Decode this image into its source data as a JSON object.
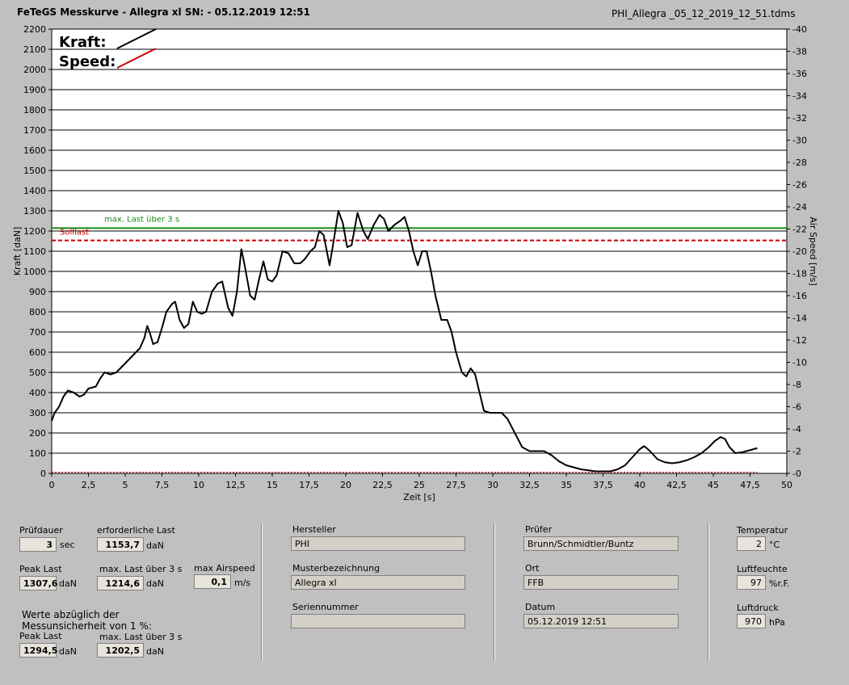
{
  "header": {
    "title": "FeTeGS Messkurve - Allegra xl  SN:  - 05.12.2019 12:51",
    "file": "PHI_Allegra _05_12_2019_12_51.tdms"
  },
  "colors": {
    "kraft": "#000000",
    "speed": "#cc0000",
    "max_line": "#1a8a1a",
    "soll_line": "#cc0000",
    "plot_bg": "#ffffff"
  },
  "chart_data": {
    "type": "line",
    "xlabel": "Zeit [s]",
    "ylabel": "Kraft [daN]",
    "y2label": "Air Speed [m/s]",
    "xlim": [
      0,
      50
    ],
    "ylim": [
      0,
      2200
    ],
    "y2lim": [
      0,
      40
    ],
    "grid": true,
    "x_ticks": [
      "0",
      "2,5",
      "5",
      "7,5",
      "10",
      "12,5",
      "15",
      "17,5",
      "20",
      "22,5",
      "25",
      "27,5",
      "30",
      "32,5",
      "35",
      "37,5",
      "40",
      "42,5",
      "45",
      "47,5",
      "50"
    ],
    "y_ticks": [
      "0",
      "100",
      "200",
      "300",
      "400",
      "500",
      "600",
      "700",
      "800",
      "900",
      "1000",
      "1100",
      "1200",
      "1300",
      "1400",
      "1500",
      "1600",
      "1700",
      "1800",
      "1900",
      "2000",
      "2100",
      "2200"
    ],
    "y2_ticks": [
      "0",
      "2",
      "4",
      "6",
      "8",
      "10",
      "12",
      "14",
      "16",
      "18",
      "20",
      "22",
      "24",
      "26",
      "28",
      "30",
      "32",
      "34",
      "36",
      "38",
      "40"
    ],
    "legend": [
      {
        "label": "Kraft:",
        "color": "#000000"
      },
      {
        "label": "Speed:",
        "color": "#cc0000"
      }
    ],
    "reference_lines": [
      {
        "label": "max. Last über  3 s",
        "value": 1214.6,
        "color": "#1a8a1a",
        "style": "solid"
      },
      {
        "label": "Solllast",
        "value": 1153.7,
        "color": "#cc0000",
        "style": "dashed"
      }
    ],
    "series": [
      {
        "name": "Kraft",
        "color": "#000000",
        "points": [
          [
            0,
            260
          ],
          [
            0.2,
            300
          ],
          [
            0.5,
            330
          ],
          [
            0.8,
            380
          ],
          [
            1.1,
            410
          ],
          [
            1.5,
            400
          ],
          [
            1.9,
            380
          ],
          [
            2.2,
            390
          ],
          [
            2.5,
            420
          ],
          [
            3,
            430
          ],
          [
            3.3,
            470
          ],
          [
            3.6,
            500
          ],
          [
            4,
            490
          ],
          [
            4.4,
            500
          ],
          [
            4.8,
            530
          ],
          [
            5.2,
            560
          ],
          [
            5.6,
            590
          ],
          [
            6,
            620
          ],
          [
            6.3,
            670
          ],
          [
            6.5,
            730
          ],
          [
            6.7,
            690
          ],
          [
            6.9,
            640
          ],
          [
            7.2,
            650
          ],
          [
            7.5,
            720
          ],
          [
            7.8,
            800
          ],
          [
            8.2,
            840
          ],
          [
            8.4,
            850
          ],
          [
            8.7,
            760
          ],
          [
            9,
            720
          ],
          [
            9.3,
            740
          ],
          [
            9.6,
            850
          ],
          [
            9.9,
            800
          ],
          [
            10.2,
            790
          ],
          [
            10.5,
            800
          ],
          [
            10.9,
            900
          ],
          [
            11.3,
            940
          ],
          [
            11.6,
            950
          ],
          [
            12,
            820
          ],
          [
            12.3,
            780
          ],
          [
            12.6,
            900
          ],
          [
            12.9,
            1110
          ],
          [
            13.1,
            1040
          ],
          [
            13.5,
            880
          ],
          [
            13.8,
            860
          ],
          [
            14.1,
            960
          ],
          [
            14.4,
            1050
          ],
          [
            14.7,
            960
          ],
          [
            15,
            950
          ],
          [
            15.3,
            980
          ],
          [
            15.7,
            1100
          ],
          [
            16.1,
            1090
          ],
          [
            16.5,
            1040
          ],
          [
            16.9,
            1040
          ],
          [
            17.2,
            1060
          ],
          [
            17.6,
            1100
          ],
          [
            17.9,
            1120
          ],
          [
            18.2,
            1200
          ],
          [
            18.5,
            1180
          ],
          [
            18.9,
            1030
          ],
          [
            19.2,
            1160
          ],
          [
            19.5,
            1300
          ],
          [
            19.8,
            1240
          ],
          [
            20.1,
            1120
          ],
          [
            20.4,
            1130
          ],
          [
            20.8,
            1290
          ],
          [
            21.2,
            1200
          ],
          [
            21.5,
            1160
          ],
          [
            21.9,
            1230
          ],
          [
            22.3,
            1280
          ],
          [
            22.6,
            1260
          ],
          [
            22.9,
            1200
          ],
          [
            23.3,
            1230
          ],
          [
            23.7,
            1250
          ],
          [
            24,
            1270
          ],
          [
            24.3,
            1200
          ],
          [
            24.6,
            1100
          ],
          [
            24.9,
            1030
          ],
          [
            25.2,
            1100
          ],
          [
            25.5,
            1100
          ],
          [
            25.8,
            1000
          ],
          [
            26.1,
            880
          ],
          [
            26.5,
            760
          ],
          [
            26.9,
            760
          ],
          [
            27.2,
            700
          ],
          [
            27.5,
            600
          ],
          [
            27.9,
            500
          ],
          [
            28.2,
            480
          ],
          [
            28.5,
            520
          ],
          [
            28.8,
            490
          ],
          [
            29.1,
            400
          ],
          [
            29.4,
            310
          ],
          [
            29.8,
            300
          ],
          [
            30.2,
            300
          ],
          [
            30.6,
            300
          ],
          [
            31,
            270
          ],
          [
            31.5,
            200
          ],
          [
            32,
            130
          ],
          [
            32.5,
            110
          ],
          [
            33,
            110
          ],
          [
            33.5,
            110
          ],
          [
            34,
            90
          ],
          [
            34.5,
            60
          ],
          [
            35,
            40
          ],
          [
            35.5,
            30
          ],
          [
            36,
            20
          ],
          [
            36.5,
            15
          ],
          [
            37,
            10
          ],
          [
            37.5,
            10
          ],
          [
            38,
            10
          ],
          [
            38.5,
            20
          ],
          [
            39,
            40
          ],
          [
            39.5,
            80
          ],
          [
            40,
            120
          ],
          [
            40.3,
            135
          ],
          [
            40.7,
            110
          ],
          [
            41.2,
            70
          ],
          [
            41.7,
            55
          ],
          [
            42.2,
            50
          ],
          [
            42.7,
            55
          ],
          [
            43.2,
            65
          ],
          [
            43.7,
            80
          ],
          [
            44.2,
            100
          ],
          [
            44.7,
            130
          ],
          [
            45.1,
            160
          ],
          [
            45.5,
            180
          ],
          [
            45.8,
            170
          ],
          [
            46.1,
            130
          ],
          [
            46.5,
            100
          ],
          [
            47,
            105
          ],
          [
            47.5,
            115
          ],
          [
            48,
            125
          ]
        ]
      },
      {
        "name": "Speed",
        "color": "#cc0000",
        "points": [
          [
            0,
            0.1
          ],
          [
            48,
            0.1
          ]
        ]
      }
    ]
  },
  "info": {
    "pruefdauer_label": "Prüfdauer",
    "pruefdauer_value": "3",
    "pruefdauer_unit": "sec",
    "erf_last_label": "erforderliche Last",
    "erf_last_value": "1153,7",
    "erf_last_unit": "daN",
    "peak_last_label": "Peak Last",
    "peak_last_value": "1307,6",
    "peak_last_unit": "daN",
    "max_last_label": "max. Last über  3 s",
    "max_last_value": "1214,6",
    "max_last_unit": "daN",
    "max_air_label": "max Airspeed",
    "max_air_value": "0,1",
    "max_air_unit": "m/s",
    "werte_text_1": "Werte abzüglich der",
    "werte_text_2": "Messunsicherheit von 1  %:",
    "peak_last2_label": "Peak Last",
    "peak_last2_value": "1294,5",
    "peak_last2_unit": "daN",
    "max_last2_label": "max. Last über  3 s",
    "max_last2_value": "1202,5",
    "max_last2_unit": "daN",
    "hersteller_label": "Hersteller",
    "hersteller_value": "PHI",
    "muster_label": "Musterbezeichnung",
    "muster_value": "Allegra xl",
    "serien_label": "Seriennummer",
    "serien_value": "",
    "pruefer_label": "Prüfer",
    "pruefer_value": "Brunn/Schmidtler/Buntz",
    "ort_label": "Ort",
    "ort_value": "FFB",
    "datum_label": "Datum",
    "datum_value": "05.12.2019 12:51",
    "temp_label": "Temperatur",
    "temp_value": "2",
    "temp_unit": "°C",
    "feuchte_label": "Luftfeuchte",
    "feuchte_value": "97",
    "feuchte_unit": "%r.F.",
    "druck_label": "Luftdruck",
    "druck_value": "970",
    "druck_unit": "hPa"
  }
}
